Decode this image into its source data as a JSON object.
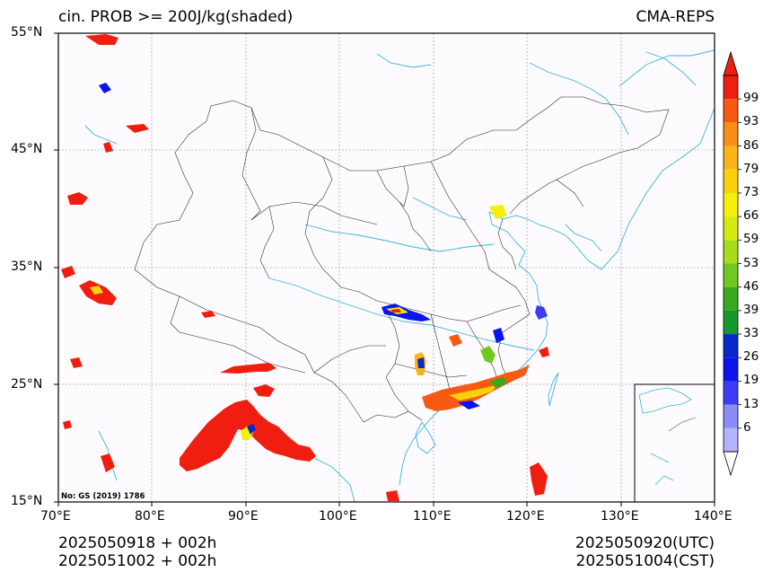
{
  "header": {
    "title_left": "cin. PROB >= 200J/kg(shaded)",
    "title_right": "CMA-REPS"
  },
  "map": {
    "region": "China",
    "projection": "lat-lon",
    "lat_ticks": [
      "55°N",
      "45°N",
      "35°N",
      "25°N",
      "15°N"
    ],
    "lon_ticks": [
      "70°E",
      "80°E",
      "90°E",
      "100°E",
      "110°E",
      "120°E",
      "130°E",
      "140°E"
    ],
    "lat_range": [
      15,
      55
    ],
    "lon_range": [
      70,
      140
    ],
    "gridlines": true,
    "approval_note": "No: GS (2019) 1786",
    "inset": "South China Sea islands (bottom-right)",
    "colors": {
      "coast_river": "#38b6e0",
      "border": "#222222",
      "background": "#fdfbfe"
    }
  },
  "colorbar": {
    "levels": [
      "99",
      "93",
      "86",
      "79",
      "73",
      "66",
      "59",
      "53",
      "46",
      "39",
      "33",
      "26",
      "19",
      "13",
      "6"
    ],
    "colors_top_to_bottom": [
      "#f01e10",
      "#f85a14",
      "#fa8c18",
      "#fbb418",
      "#fad20c",
      "#f5f00a",
      "#d6ea12",
      "#a8dc18",
      "#70c820",
      "#38a81e",
      "#18982c",
      "#0828c8",
      "#0c14ee",
      "#3c3cf6",
      "#8c8cf6",
      "#b4b4fa"
    ],
    "extend": "both"
  },
  "footer": {
    "init_utc": "2025050918  +  002h",
    "init_cst": "2025051002  +  002h",
    "valid_utc": "2025050920(UTC)",
    "valid_cst": "2025051004(CST)"
  }
}
